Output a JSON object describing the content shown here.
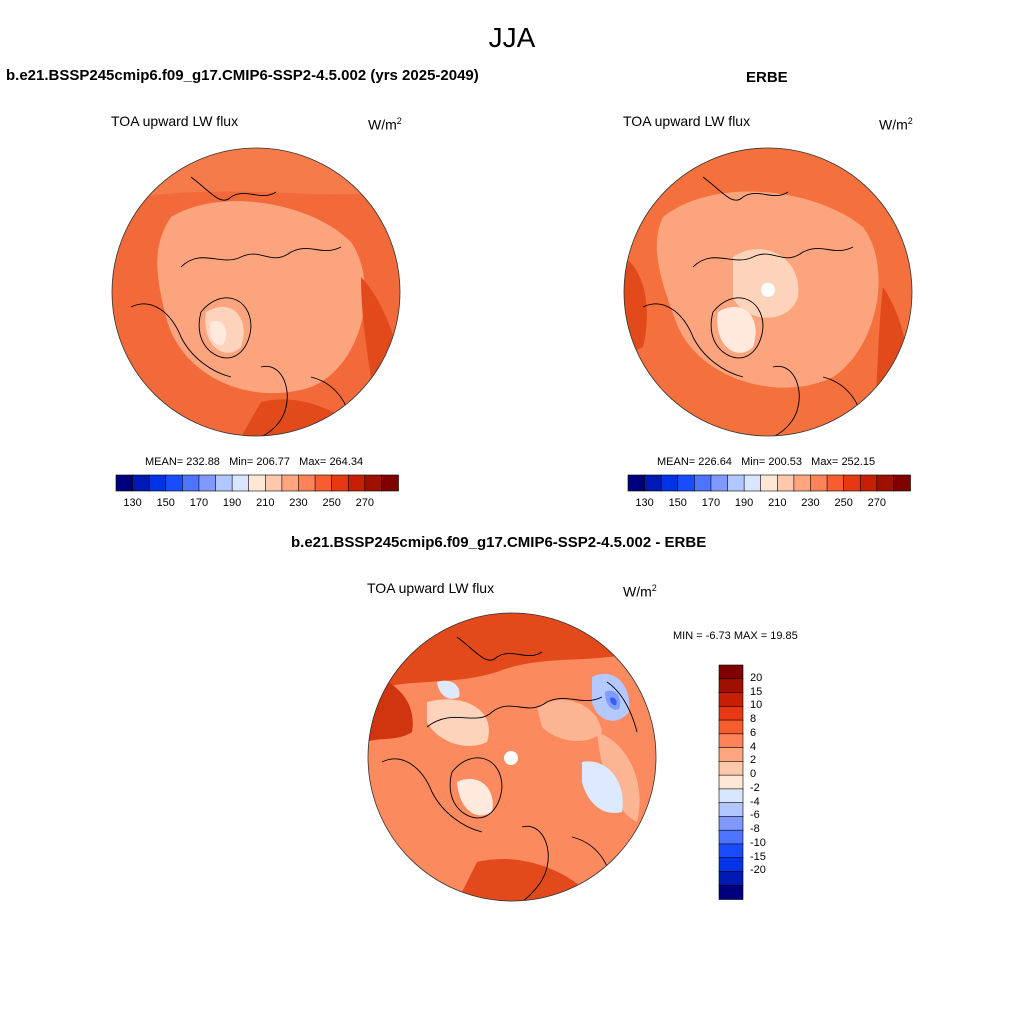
{
  "season_title": "JJA",
  "panels": [
    {
      "title": "b.e21.BSSP245cmip6.f09_g17.CMIP6-SSP2-4.5.002 (yrs 2025-2049)",
      "field_label": "TOA upward LW flux",
      "units_base": "W/m",
      "units_exp": "2",
      "stats": {
        "mean_label": "MEAN=",
        "mean": "232.88",
        "min_label": "Min=",
        "min": "206.77",
        "max_label": "Max=",
        "max": "264.34"
      }
    },
    {
      "title": "ERBE",
      "field_label": "TOA upward LW flux",
      "units_base": "W/m",
      "units_exp": "2",
      "stats": {
        "mean_label": "MEAN=",
        "mean": "226.64",
        "min_label": "Min=",
        "min": "200.53",
        "max_label": "Max=",
        "max": "252.15"
      }
    },
    {
      "title": "b.e21.BSSP245cmip6.f09_g17.CMIP6-SSP2-4.5.002 - ERBE",
      "field_label": "TOA upward LW flux",
      "units_base": "W/m",
      "units_exp": "2",
      "minmax": "MIN =  -6.73 MAX =  19.85"
    }
  ],
  "colorbar_abs": {
    "colors": [
      "#00007f",
      "#0019b2",
      "#0033e5",
      "#1a4cff",
      "#4d73ff",
      "#7f99ff",
      "#b2c6ff",
      "#d9e6ff",
      "#ffe7d6",
      "#ffc8aa",
      "#ffa580",
      "#ff8358",
      "#f75d2e",
      "#e63812",
      "#c71f05",
      "#a01000",
      "#800000"
    ],
    "tick_labels": [
      "130",
      "150",
      "170",
      "190",
      "210",
      "230",
      "250",
      "270"
    ]
  },
  "colorbar_diff": {
    "colors": [
      "#00007f",
      "#0019b2",
      "#0033e5",
      "#1a4cff",
      "#4d73ff",
      "#7f99ff",
      "#b2c6ff",
      "#d9e6ff",
      "#ffe7d6",
      "#ffc8aa",
      "#ffa580",
      "#ff8358",
      "#f75d2e",
      "#e63812",
      "#c71f05",
      "#a01000",
      "#800000"
    ],
    "tick_labels": [
      "20",
      "15",
      "10",
      "8",
      "6",
      "4",
      "2",
      "0",
      "-2",
      "-4",
      "-6",
      "-8",
      "-10",
      "-15",
      "-20"
    ]
  },
  "map_colors": {
    "base_model": "#f26a3a",
    "base_erbe": "#f4703d",
    "base_diff": "#fb8a5e",
    "light": "#fcb593",
    "lighter": "#fdd3bb",
    "pale": "#ffeadd",
    "dark": "#e24a1c",
    "darker": "#d03510",
    "blue_pale": "#dce9ff",
    "blue_light": "#b3c9ff",
    "blue_mid": "#7f9cff",
    "blue_dark": "#3a5cff",
    "coast": "#000000"
  }
}
